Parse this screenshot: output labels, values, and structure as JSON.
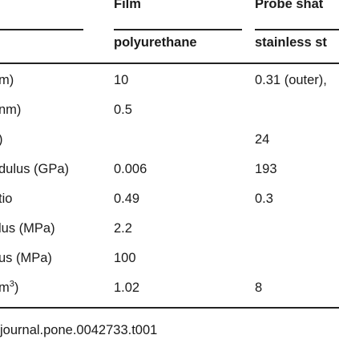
{
  "table": {
    "group_headers": [
      "Film",
      "Probe shat"
    ],
    "subheaders": [
      "polyurethane",
      "stainless st"
    ],
    "rows": [
      [
        "m)",
        "10",
        "0.31 (outer),"
      ],
      [
        "nm)",
        "0.5",
        ""
      ],
      [
        ")",
        "",
        "24"
      ],
      [
        "dulus (GPa)",
        "0.006",
        "193"
      ],
      [
        "tio",
        "0.49",
        "0.3"
      ],
      [
        "lus (MPa)",
        "2.2",
        ""
      ],
      [
        "us (MPa)",
        "100",
        ""
      ],
      [
        "m",
        "1.02",
        "8"
      ]
    ],
    "last_row_superscript": "3",
    "last_row_suffix": ")"
  },
  "footer": "journal.pone.0042733.t001"
}
